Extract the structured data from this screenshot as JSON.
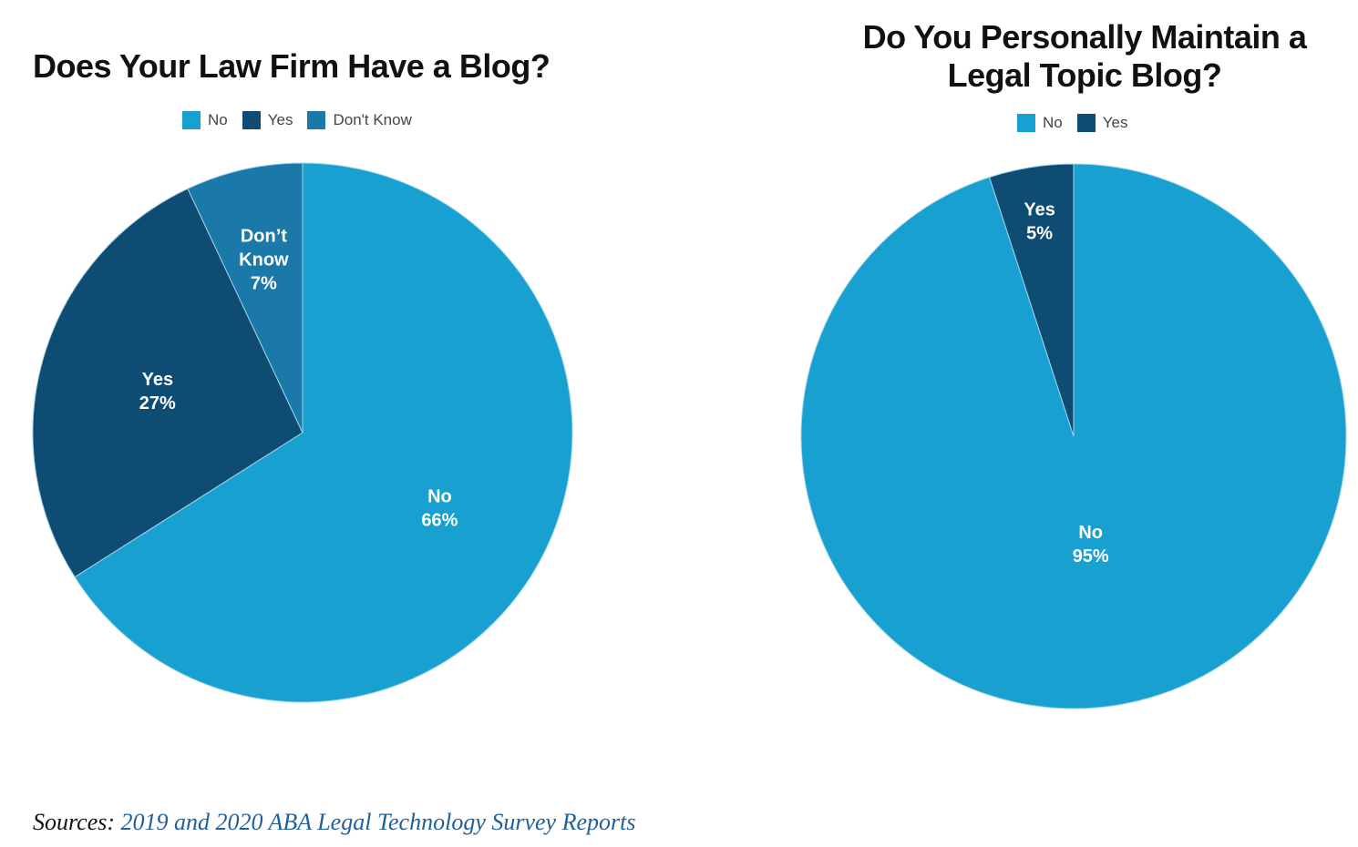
{
  "colors": {
    "no": "#17a0d0",
    "yes": "#0f4c73",
    "dont_know": "#1a79a8",
    "divider": "#9fd3ea"
  },
  "chart_data": [
    {
      "type": "pie",
      "title": "Does Your Law Firm Have a Blog?",
      "legend": {
        "placement": "top",
        "entries": [
          "No",
          "Yes",
          "Don't Know"
        ]
      },
      "slices": [
        {
          "label": "No",
          "value": 66,
          "display_label": [
            "No",
            "66%"
          ],
          "color": "#17a0d0"
        },
        {
          "label": "Yes",
          "value": 27,
          "display_label": [
            "Yes",
            "27%"
          ],
          "color": "#0f4c73"
        },
        {
          "label": "Don't Know",
          "value": 7,
          "display_label": [
            "Don’t",
            "Know",
            "7%"
          ],
          "color": "#1a79a8"
        }
      ]
    },
    {
      "type": "pie",
      "title": "Do You Personally Maintain a Legal Topic Blog?",
      "title_lines": [
        "Do You Personally Maintain a",
        "Legal Topic Blog?"
      ],
      "legend": {
        "placement": "top",
        "entries": [
          "No",
          "Yes"
        ]
      },
      "slices": [
        {
          "label": "No",
          "value": 95,
          "display_label": [
            "No",
            "95%"
          ],
          "color": "#17a0d0"
        },
        {
          "label": "Yes",
          "value": 5,
          "display_label": [
            "Yes",
            "5%"
          ],
          "color": "#0f4c73"
        }
      ]
    }
  ],
  "sources": {
    "prefix": "Sources:",
    "text": "2019 and 2020 ABA Legal Technology Survey Reports"
  }
}
